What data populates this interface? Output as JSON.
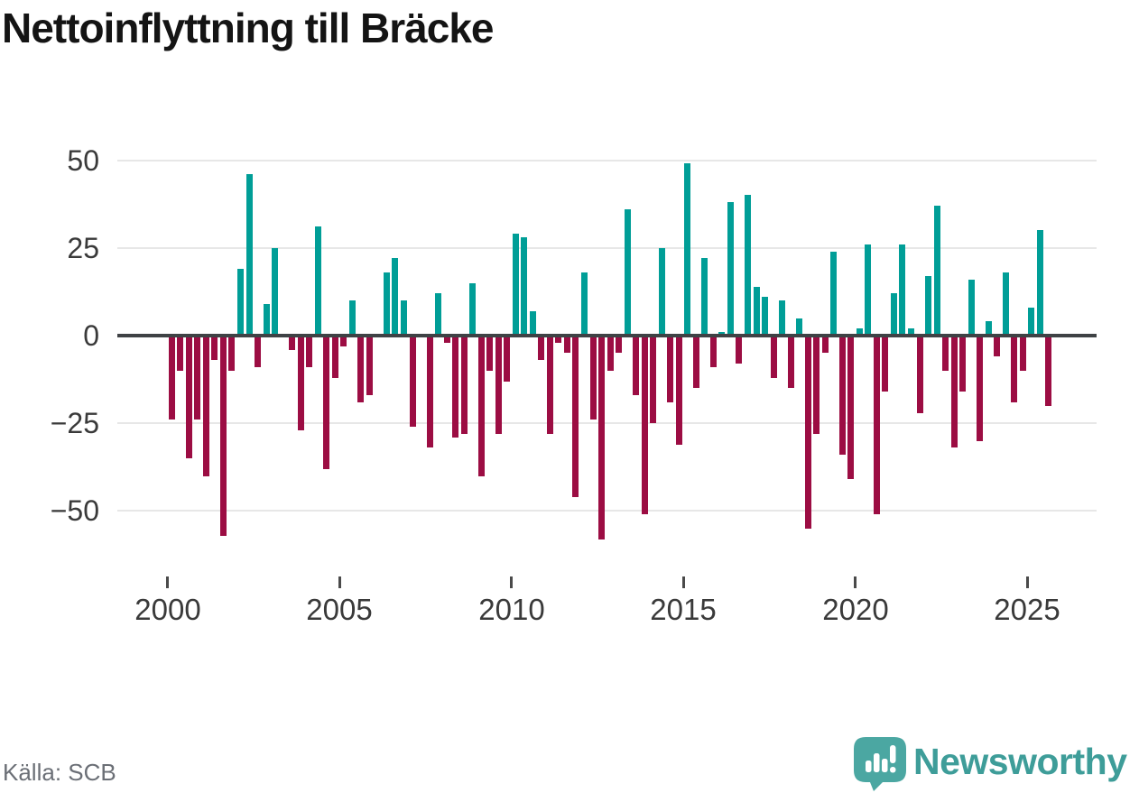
{
  "title": "Nettoinflyttning till Bräcke",
  "source": "Källa: SCB",
  "brand": {
    "name": "Newsworthy",
    "bubble_color": "#4ba7a2",
    "text_color": "#3e9d99"
  },
  "colors": {
    "positive_bar": "#009e97",
    "negative_bar": "#9c0d43",
    "zero_line": "#3f4245",
    "gridline": "#e7e7e7",
    "axis_text": "#3a3a3a"
  },
  "chart_data": {
    "type": "bar",
    "title": "Nettoinflyttning till Bräcke",
    "frequency": "quarterly",
    "x_start_label": "2000 Q1",
    "x_end_label": "2025 Q3",
    "x_tick_labels": [
      "2000",
      "2005",
      "2010",
      "2015",
      "2020",
      "2025"
    ],
    "y_ticks": [
      50,
      25,
      0,
      -25,
      -50
    ],
    "ylim": [
      -62,
      52
    ],
    "grid": "horizontal",
    "legend": "none",
    "xlabel": "",
    "ylabel": "",
    "series": [
      {
        "name": "Nettoinflyttning",
        "values": [
          -24,
          -10,
          -35,
          -24,
          -40,
          -7,
          -57,
          -10,
          19,
          46,
          -9,
          9,
          25,
          0,
          -4,
          -27,
          -9,
          31,
          -38,
          -12,
          -3,
          10,
          -19,
          -17,
          0,
          18,
          22,
          10,
          -26,
          0,
          -32,
          12,
          -2,
          -29,
          -28,
          15,
          -40,
          -10,
          -28,
          -13,
          29,
          28,
          7,
          -7,
          -28,
          -2,
          -5,
          -46,
          18,
          -24,
          -58,
          -10,
          -5,
          36,
          -17,
          -51,
          -25,
          25,
          -19,
          -31,
          49,
          -15,
          22,
          -9,
          1,
          38,
          -8,
          40,
          14,
          11,
          -12,
          10,
          -15,
          5,
          -55,
          -28,
          -5,
          24,
          -34,
          -41,
          2,
          26,
          -51,
          -16,
          12,
          26,
          2,
          -22,
          17,
          37,
          -10,
          -32,
          -16,
          16,
          -30,
          4,
          -6,
          18,
          -19,
          -10,
          8,
          30,
          -20
        ]
      }
    ]
  }
}
